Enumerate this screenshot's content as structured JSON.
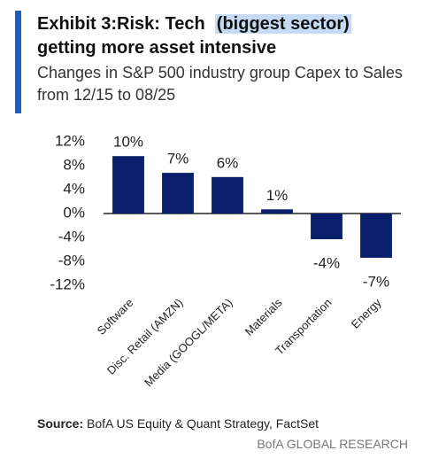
{
  "chart_data": {
    "type": "bar",
    "title": "Exhibit 3:Risk: Tech",
    "title_highlight": "(biggest sector)",
    "title_rest": "getting more asset intensive",
    "subtitle": "Changes in S&P 500 industry group Capex to Sales from 12/15 to 08/25",
    "categories": [
      "Software",
      "Disc. Retail (AMZN)",
      "Media (GOOGL/META)",
      "Materials",
      "Transportation",
      "Energy"
    ],
    "values": [
      9.6,
      6.8,
      6.1,
      0.7,
      -4.3,
      -7.4
    ],
    "value_labels": [
      "10%",
      "7%",
      "6%",
      "1%",
      "-4%",
      "-7%"
    ],
    "color": "#0a1f6b",
    "ylim": [
      -12,
      12
    ],
    "yticks": [
      {
        "value": 12,
        "label": "12%"
      },
      {
        "value": 8,
        "label": "8%"
      },
      {
        "value": 4,
        "label": "4%"
      },
      {
        "value": 0,
        "label": "0%"
      },
      {
        "value": -4,
        "label": "-4%"
      },
      {
        "value": -8,
        "label": "-8%"
      },
      {
        "value": -12,
        "label": "-12%"
      }
    ],
    "source_label": "Source:",
    "source": "BofA US Equity & Quant Strategy, FactSet",
    "footer": "BofA GLOBAL RESEARCH"
  }
}
